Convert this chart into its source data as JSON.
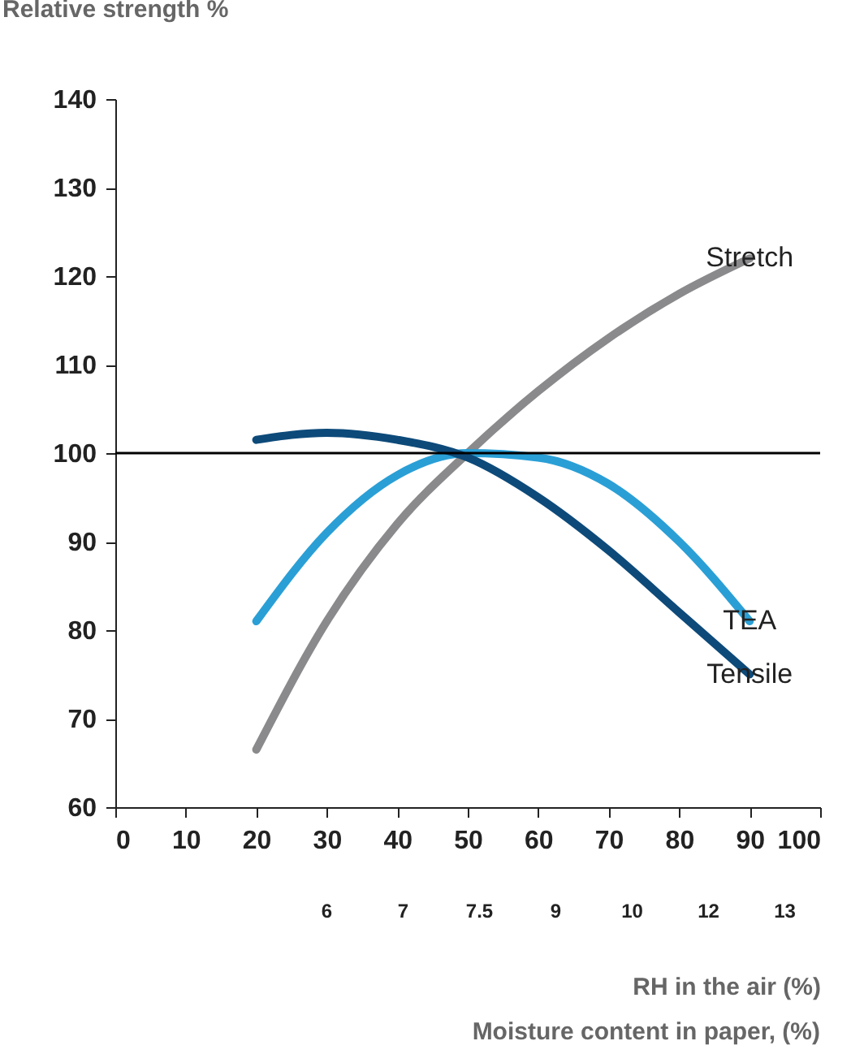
{
  "chart_data": {
    "type": "line",
    "ylabel": "Relative strength %",
    "xlabel": "RH in the air (%)",
    "x2label": "Moisture content in paper, (%)",
    "x": [
      20,
      30,
      40,
      50,
      60,
      70,
      80,
      90
    ],
    "series": [
      {
        "name": "Stretch",
        "color": "#8a8a8c",
        "values": [
          66.5,
          81,
          92,
          100,
          107,
          113,
          118,
          122
        ]
      },
      {
        "name": "TEA",
        "color": "#2a9fd6",
        "values": [
          81,
          91,
          97.5,
          100,
          99.5,
          96.5,
          90,
          81
        ]
      },
      {
        "name": "Tensile",
        "color": "#0d4a7a",
        "values": [
          101.5,
          102.3,
          101.5,
          99.5,
          95,
          89,
          82,
          75
        ]
      }
    ],
    "xlim": [
      0,
      100
    ],
    "xticks": [
      0,
      10,
      20,
      30,
      40,
      50,
      60,
      70,
      80,
      90,
      100
    ],
    "ylim": [
      60,
      140
    ],
    "yticks": [
      60,
      70,
      80,
      90,
      100,
      110,
      120,
      130,
      140
    ],
    "annotations": [
      "6",
      "7",
      "7.5",
      "9",
      "10",
      "12",
      "13"
    ],
    "ref_lines": [
      {
        "axis": "y",
        "value": 100,
        "color": "#000000"
      }
    ],
    "grid": false,
    "legend": false,
    "marker": "none",
    "line_style": "solid"
  }
}
